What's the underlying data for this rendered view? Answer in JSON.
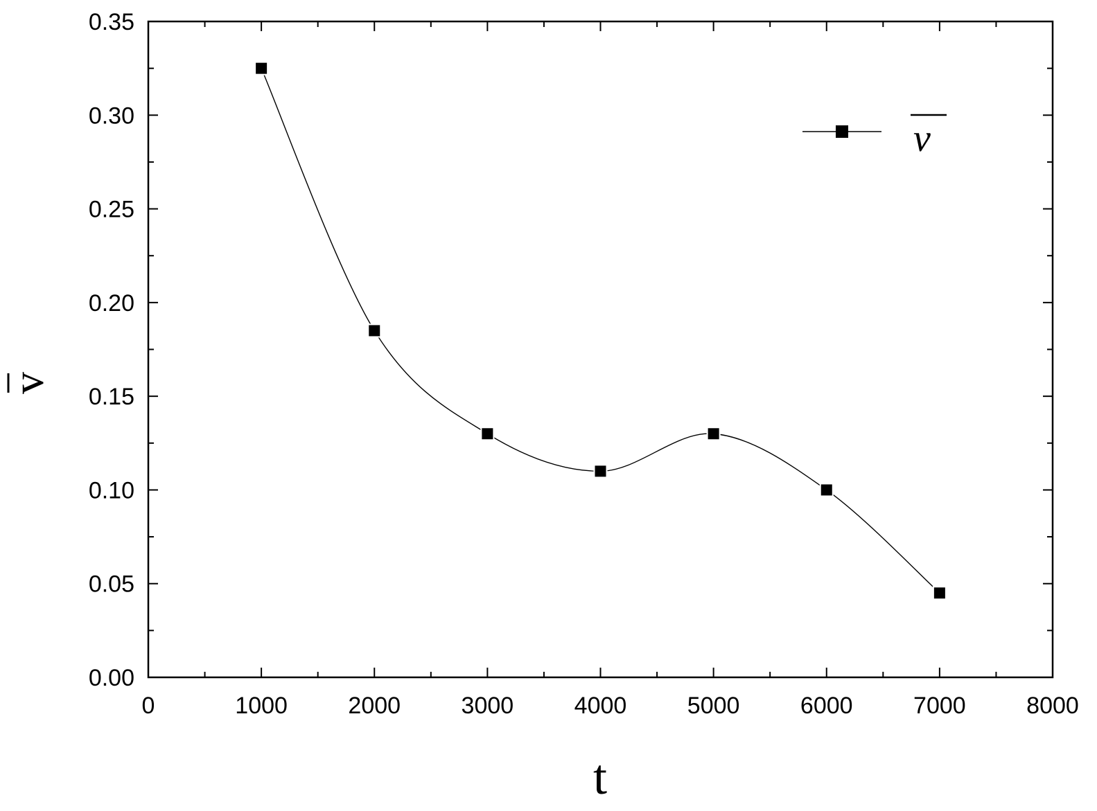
{
  "chart_data": {
    "type": "line",
    "xlabel": "t",
    "ylabel": "v",
    "xlim": [
      0,
      8000
    ],
    "ylim": [
      0,
      0.35
    ],
    "xticks": [
      0,
      1000,
      2000,
      3000,
      4000,
      5000,
      6000,
      7000,
      8000
    ],
    "yticks": [
      0.0,
      0.05,
      0.1,
      0.15,
      0.2,
      0.25,
      0.3,
      0.35
    ],
    "xtick_labels": [
      "0",
      "1000",
      "2000",
      "3000",
      "4000",
      "5000",
      "6000",
      "7000",
      "8000"
    ],
    "ytick_labels": [
      "0.00",
      "0.05",
      "0.10",
      "0.15",
      "0.20",
      "0.25",
      "0.30",
      "0.35"
    ],
    "grid": false,
    "legend_position": "top-right",
    "series": [
      {
        "name": "v",
        "x": [
          1000,
          2000,
          3000,
          4000,
          5000,
          6000,
          7000
        ],
        "y": [
          0.325,
          0.185,
          0.13,
          0.11,
          0.13,
          0.1,
          0.045
        ],
        "marker": "square",
        "line": "smooth",
        "color": "#000000"
      }
    ]
  }
}
